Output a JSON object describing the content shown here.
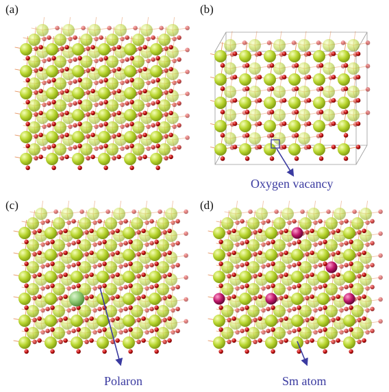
{
  "panels": [
    {
      "id": "a",
      "label": "(a)",
      "annotation": ""
    },
    {
      "id": "b",
      "label": "(b)",
      "annotation": "Oxygen vacancy"
    },
    {
      "id": "c",
      "label": "(c)",
      "annotation": "Polaron"
    },
    {
      "id": "d",
      "label": "(d)",
      "annotation": "Sm atom"
    }
  ],
  "colors": {
    "cation": "#b9d630",
    "cation_dark": "#7f9a12",
    "oxygen": "#c41414",
    "bond": "#e07a3a",
    "polaron": "#8cc870",
    "sm": "#c0186a",
    "annotation": "#3a3aa0",
    "cell_edge": "#9a9a9a"
  }
}
